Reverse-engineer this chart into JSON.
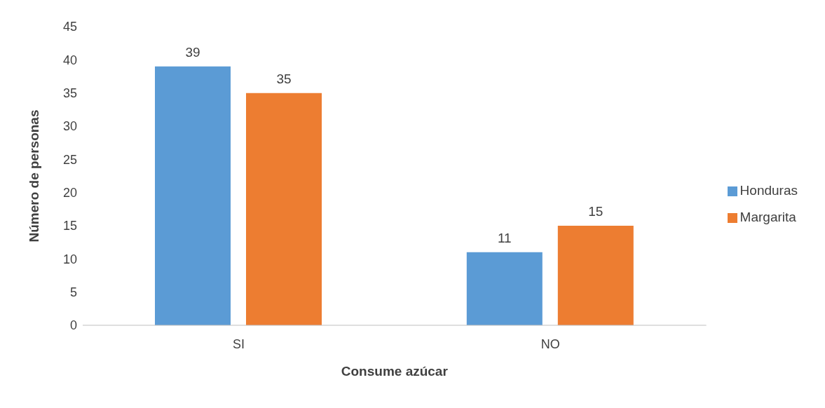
{
  "chart_data": {
    "type": "bar",
    "xlabel": "Consume azúcar",
    "ylabel": "Número de personas",
    "categories": [
      "SI",
      "NO"
    ],
    "series": [
      {
        "name": "Honduras",
        "color": "#5b9bd5",
        "values": [
          39,
          11
        ]
      },
      {
        "name": "Margarita",
        "color": "#ed7d31",
        "values": [
          35,
          15
        ]
      }
    ],
    "ylim": [
      0,
      45
    ],
    "yticks": [
      0,
      5,
      10,
      15,
      20,
      25,
      30,
      35,
      40,
      45
    ],
    "grid": false,
    "legend": "right",
    "data_labels": true
  }
}
